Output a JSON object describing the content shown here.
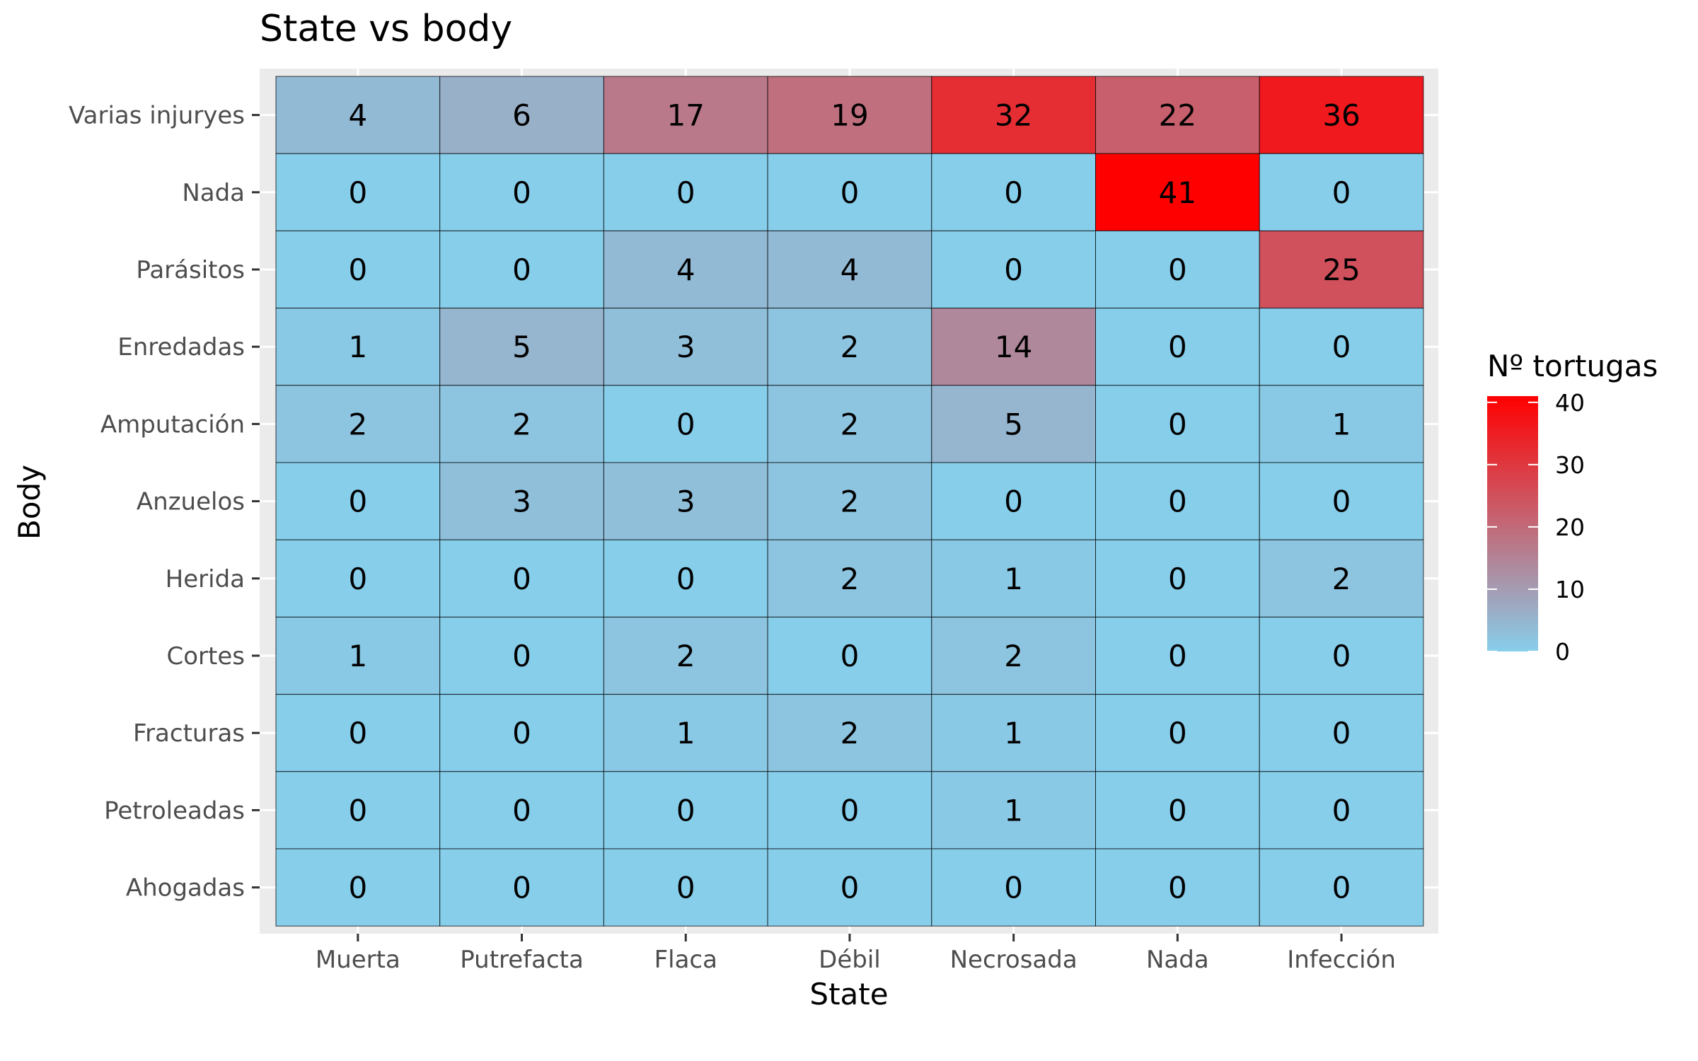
{
  "chart_data": {
    "type": "heatmap",
    "title": "State vs body",
    "xlabel": "State",
    "ylabel": "Body",
    "x_categories": [
      "Muerta",
      "Putrefacta",
      "Flaca",
      "Débil",
      "Necrosada",
      "Nada",
      "Infección"
    ],
    "y_categories": [
      "Varias injuryes",
      "Nada",
      "Parásitos",
      "Enredadas",
      "Amputación",
      "Anzuelos",
      "Herida",
      "Cortes",
      "Fracturas",
      "Petroleadas",
      "Ahogadas"
    ],
    "values": [
      [
        4,
        6,
        17,
        19,
        32,
        22,
        36
      ],
      [
        0,
        0,
        0,
        0,
        0,
        41,
        0
      ],
      [
        0,
        0,
        4,
        4,
        0,
        0,
        25
      ],
      [
        1,
        5,
        3,
        2,
        14,
        0,
        0
      ],
      [
        2,
        2,
        0,
        2,
        5,
        0,
        1
      ],
      [
        0,
        3,
        3,
        2,
        0,
        0,
        0
      ],
      [
        0,
        0,
        0,
        2,
        1,
        0,
        2
      ],
      [
        1,
        0,
        2,
        0,
        2,
        0,
        0
      ],
      [
        0,
        0,
        1,
        2,
        1,
        0,
        0
      ],
      [
        0,
        0,
        0,
        0,
        1,
        0,
        0
      ],
      [
        0,
        0,
        0,
        0,
        0,
        0,
        0
      ]
    ],
    "legend": {
      "title": "Nº tortugas",
      "ticks": [
        0,
        10,
        20,
        30,
        40
      ],
      "low_color": "#87ceeb",
      "high_color": "#ff0000",
      "range": [
        0,
        41
      ],
      "position": "right"
    },
    "panel_background": "#ebebeb",
    "grid": true
  }
}
